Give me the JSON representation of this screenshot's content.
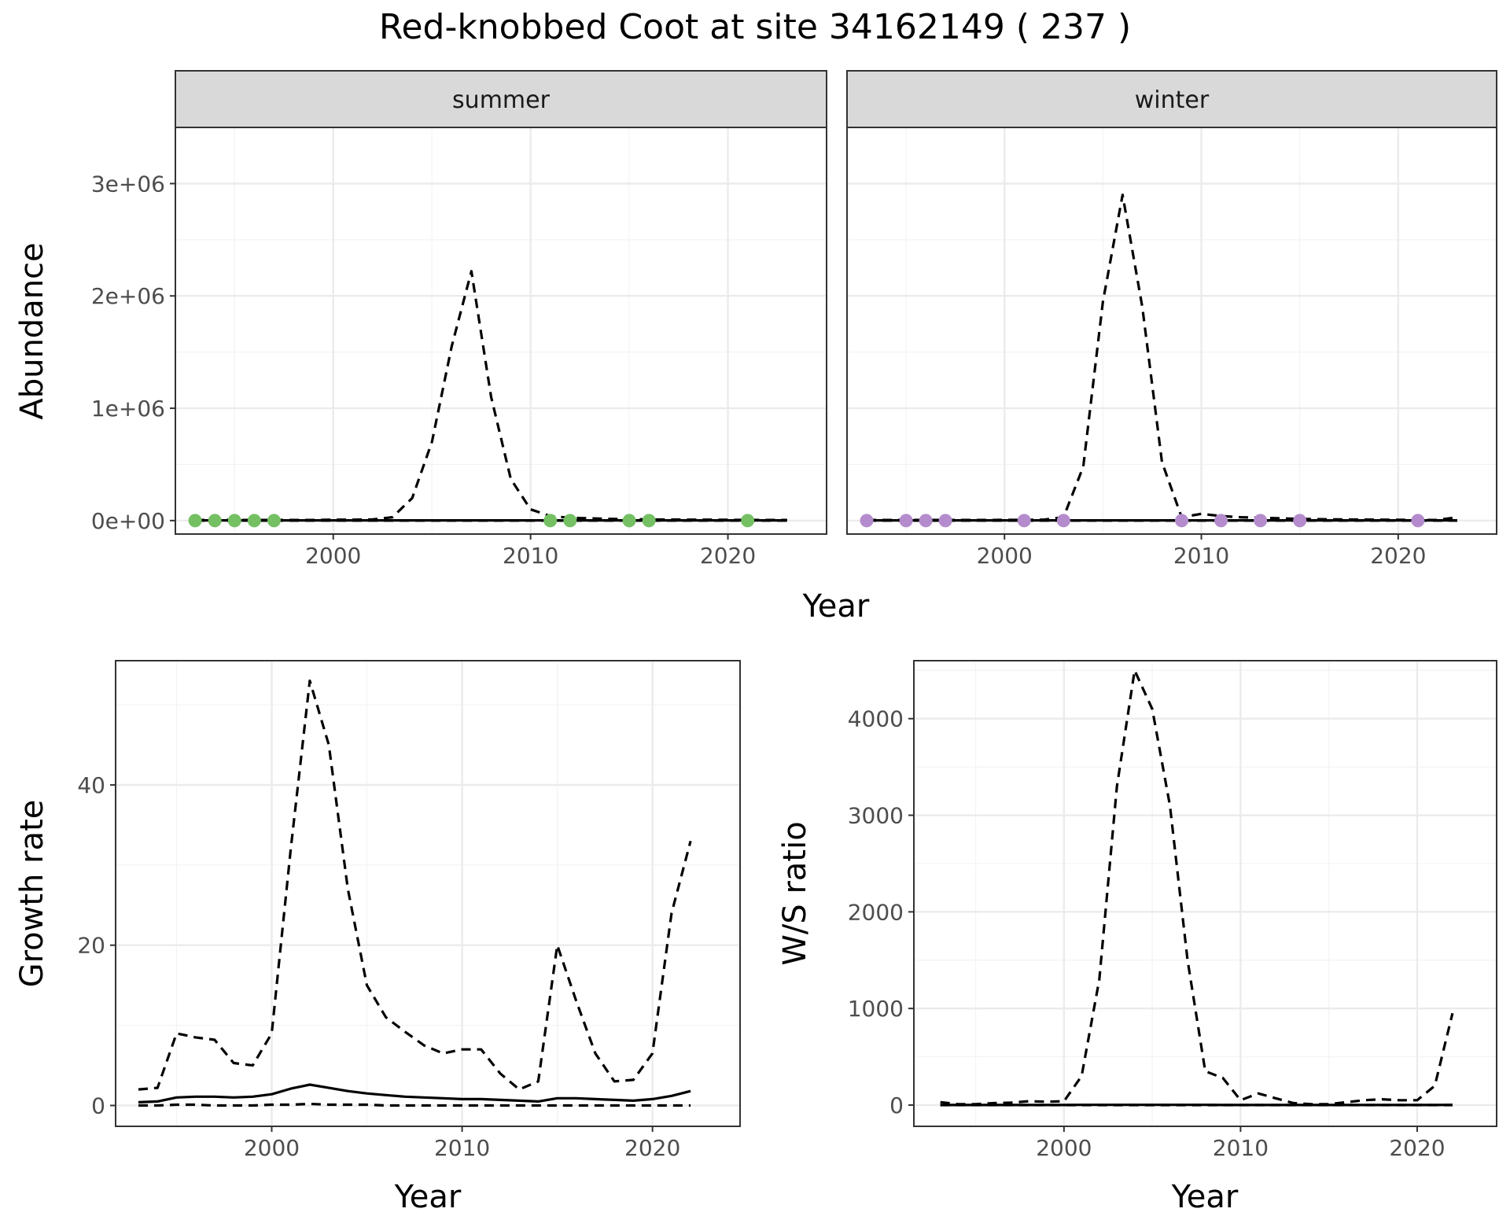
{
  "page": {
    "title": "Red-knobbed Coot at site 34162149 ( 237 )"
  },
  "colors": {
    "summer_points": "#74c063",
    "winter_points": "#b48ccd",
    "strip_background": "#d9d9d9",
    "lines": "#000000"
  },
  "chart_data": [
    {
      "id": "abundance",
      "type": "line",
      "facets": [
        "summer",
        "winter"
      ],
      "ylabel": "Abundance",
      "xlabel": "Year",
      "xlim": [
        1992,
        2025
      ],
      "ylim": [
        -120000,
        3500000
      ],
      "x_ticks": [
        2000,
        2010,
        2020
      ],
      "x_tick_labels": [
        "2000",
        "2010",
        "2020"
      ],
      "y_ticks": [
        0,
        1000000,
        2000000,
        3000000
      ],
      "y_tick_labels": [
        "0e+00",
        "1e+06",
        "2e+06",
        "3e+06"
      ],
      "grid": true,
      "panels": {
        "summer": {
          "x": [
            1993,
            1994,
            1995,
            1996,
            1997,
            1998,
            1999,
            2000,
            2001,
            2002,
            2003,
            2004,
            2005,
            2006,
            2007,
            2008,
            2009,
            2010,
            2011,
            2012,
            2013,
            2014,
            2015,
            2016,
            2017,
            2018,
            2019,
            2020,
            2021,
            2022,
            2023
          ],
          "mean": [
            2000,
            2000,
            2000,
            2000,
            2000,
            2000,
            2000,
            2000,
            2000,
            2000,
            2000,
            2000,
            2000,
            2000,
            2000,
            2000,
            2000,
            2000,
            2000,
            2000,
            2000,
            2000,
            2000,
            2000,
            2000,
            2000,
            2000,
            2000,
            2000,
            2000,
            2000
          ],
          "upper": [
            5000,
            5000,
            5000,
            5000,
            5000,
            5000,
            5000,
            8000,
            8000,
            10000,
            30000,
            200000,
            700000,
            1550000,
            2220000,
            1100000,
            370000,
            100000,
            40000,
            25000,
            20000,
            15000,
            12000,
            10000,
            9000,
            8000,
            8000,
            7000,
            6000,
            5000,
            5000
          ],
          "lower": [
            0,
            0,
            0,
            0,
            0,
            0,
            0,
            0,
            0,
            0,
            0,
            0,
            0,
            0,
            0,
            0,
            0,
            0,
            0,
            0,
            0,
            0,
            0,
            0,
            0,
            0,
            0,
            0,
            0,
            0,
            0
          ],
          "obs_x": [
            1993,
            1994,
            1995,
            1996,
            1997,
            2011,
            2012,
            2015,
            2016,
            2021
          ],
          "obs_y": [
            0,
            0,
            0,
            0,
            0,
            0,
            0,
            0,
            0,
            0
          ]
        },
        "winter": {
          "x": [
            1993,
            1994,
            1995,
            1996,
            1997,
            1998,
            1999,
            2000,
            2001,
            2002,
            2003,
            2004,
            2005,
            2006,
            2007,
            2008,
            2009,
            2010,
            2011,
            2012,
            2013,
            2014,
            2015,
            2016,
            2017,
            2018,
            2019,
            2020,
            2021,
            2022,
            2023
          ],
          "mean": [
            2000,
            2000,
            2000,
            2000,
            2000,
            2000,
            2000,
            2000,
            2000,
            2000,
            2000,
            2000,
            2000,
            2000,
            2000,
            2000,
            2000,
            2000,
            2000,
            2000,
            2000,
            2000,
            2000,
            2000,
            2000,
            2000,
            2000,
            2000,
            2000,
            2000,
            2000
          ],
          "upper": [
            5000,
            5000,
            5000,
            5000,
            5000,
            5000,
            5000,
            6000,
            6000,
            8000,
            30000,
            480000,
            1950000,
            2900000,
            1900000,
            520000,
            30000,
            60000,
            40000,
            30000,
            25000,
            20000,
            15000,
            12000,
            10000,
            9000,
            8000,
            7000,
            6000,
            5000,
            30000
          ],
          "lower": [
            0,
            0,
            0,
            0,
            0,
            0,
            0,
            0,
            0,
            0,
            0,
            0,
            0,
            0,
            0,
            0,
            0,
            0,
            0,
            0,
            0,
            0,
            0,
            0,
            0,
            0,
            0,
            0,
            0,
            0,
            0
          ],
          "obs_x": [
            1993,
            1995,
            1996,
            1997,
            2001,
            2003,
            2009,
            2011,
            2013,
            2015,
            2021
          ],
          "obs_y": [
            0,
            0,
            0,
            0,
            0,
            0,
            0,
            0,
            0,
            0,
            0
          ]
        }
      }
    },
    {
      "id": "growth",
      "type": "line",
      "ylabel": "Growth rate",
      "xlabel": "Year",
      "xlim": [
        1991.8,
        2024.6
      ],
      "ylim": [
        -2.6,
        55.5
      ],
      "x_ticks": [
        2000,
        2010,
        2020
      ],
      "x_tick_labels": [
        "2000",
        "2010",
        "2020"
      ],
      "y_ticks": [
        0,
        20,
        40
      ],
      "y_tick_labels": [
        "0",
        "20",
        "40"
      ],
      "grid": true,
      "x": [
        1993,
        1994,
        1995,
        1996,
        1997,
        1998,
        1999,
        2000,
        2001,
        2002,
        2003,
        2004,
        2005,
        2006,
        2007,
        2008,
        2009,
        2010,
        2011,
        2012,
        2013,
        2014,
        2015,
        2016,
        2017,
        2018,
        2019,
        2020,
        2021,
        2022
      ],
      "mean": [
        0.4,
        0.5,
        1.0,
        1.1,
        1.1,
        1.0,
        1.1,
        1.4,
        2.1,
        2.6,
        2.2,
        1.8,
        1.5,
        1.3,
        1.1,
        1.0,
        0.9,
        0.8,
        0.8,
        0.7,
        0.6,
        0.5,
        0.9,
        0.9,
        0.8,
        0.7,
        0.6,
        0.8,
        1.2,
        1.8
      ],
      "upper": [
        2.0,
        2.2,
        9.0,
        8.5,
        8.2,
        5.3,
        5.0,
        9.0,
        32.0,
        53.0,
        45.0,
        27.0,
        15.0,
        11.0,
        9.2,
        7.5,
        6.5,
        7.0,
        7.0,
        4.0,
        2.0,
        3.0,
        20.0,
        13.0,
        6.5,
        3.0,
        3.2,
        6.5,
        24.0,
        33.0
      ],
      "lower": [
        0.0,
        0.0,
        0.1,
        0.1,
        0.0,
        0.0,
        0.0,
        0.1,
        0.1,
        0.2,
        0.1,
        0.1,
        0.1,
        0.0,
        0.0,
        0.0,
        0.0,
        0.0,
        0.0,
        0.0,
        0.0,
        0.0,
        0.0,
        0.0,
        0.0,
        0.0,
        0.0,
        0.0,
        0.0,
        0.0
      ]
    },
    {
      "id": "ws_ratio",
      "type": "line",
      "ylabel": "W/S ratio",
      "xlabel": "Year",
      "xlim": [
        1991.5,
        2024.5
      ],
      "ylim": [
        -220,
        4600
      ],
      "x_ticks": [
        2000,
        2010,
        2020
      ],
      "x_tick_labels": [
        "2000",
        "2010",
        "2020"
      ],
      "y_ticks": [
        0,
        1000,
        2000,
        3000,
        4000
      ],
      "y_tick_labels": [
        "0",
        "1000",
        "2000",
        "3000",
        "4000"
      ],
      "grid": true,
      "x": [
        1993,
        1994,
        1995,
        1996,
        1997,
        1998,
        1999,
        2000,
        2001,
        2002,
        2003,
        2004,
        2005,
        2006,
        2007,
        2008,
        2009,
        2010,
        2011,
        2012,
        2013,
        2014,
        2015,
        2016,
        2017,
        2018,
        2019,
        2020,
        2021,
        2022
      ],
      "mean": [
        1,
        1,
        1,
        1,
        1,
        1,
        1,
        1,
        2,
        2,
        2,
        2,
        2,
        2,
        2,
        2,
        1,
        1,
        1,
        1,
        1,
        1,
        1,
        1,
        1,
        1,
        1,
        1,
        1,
        2
      ],
      "upper": [
        30,
        10,
        10,
        20,
        25,
        40,
        35,
        40,
        300,
        1300,
        3300,
        4500,
        4100,
        3100,
        1500,
        350,
        280,
        50,
        120,
        70,
        20,
        10,
        10,
        30,
        50,
        60,
        50,
        50,
        200,
        950
      ],
      "lower": [
        0,
        0,
        0,
        0,
        0,
        0,
        0,
        0,
        0,
        0,
        0,
        0,
        0,
        0,
        0,
        0,
        0,
        0,
        0,
        0,
        0,
        0,
        0,
        0,
        0,
        0,
        0,
        0,
        0,
        0
      ]
    }
  ]
}
